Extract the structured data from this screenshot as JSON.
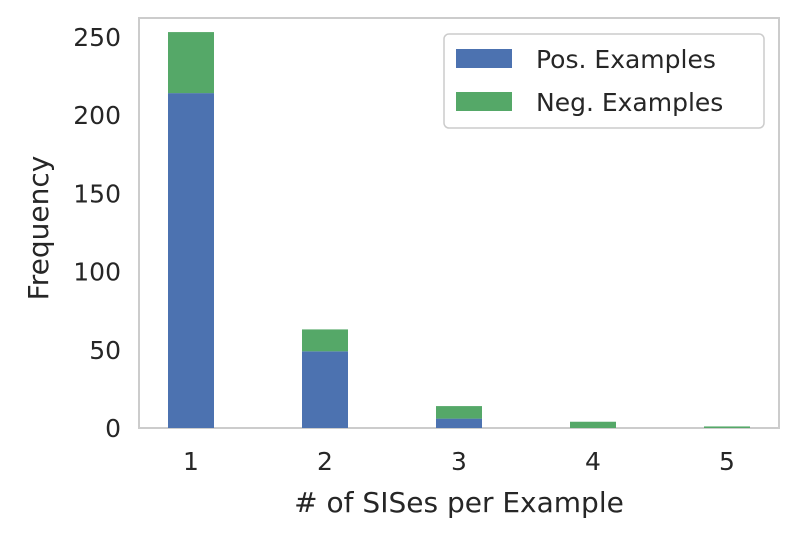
{
  "chart_data": {
    "type": "bar",
    "stacked": true,
    "categories": [
      "1",
      "2",
      "3",
      "4",
      "5"
    ],
    "series": [
      {
        "name": "Pos. Examples",
        "values": [
          214,
          49,
          6,
          0,
          0
        ],
        "color": "#4c72b0"
      },
      {
        "name": "Neg. Examples",
        "values": [
          39,
          14,
          8,
          4,
          1
        ],
        "color": "#55a868"
      }
    ],
    "title": "",
    "xlabel": "# of SISes per Example",
    "ylabel": "Frequency",
    "ylim": [
      0,
      262
    ],
    "yticks": [
      0,
      50,
      100,
      150,
      200,
      250
    ],
    "grid": false,
    "legend_position": "top-right"
  }
}
